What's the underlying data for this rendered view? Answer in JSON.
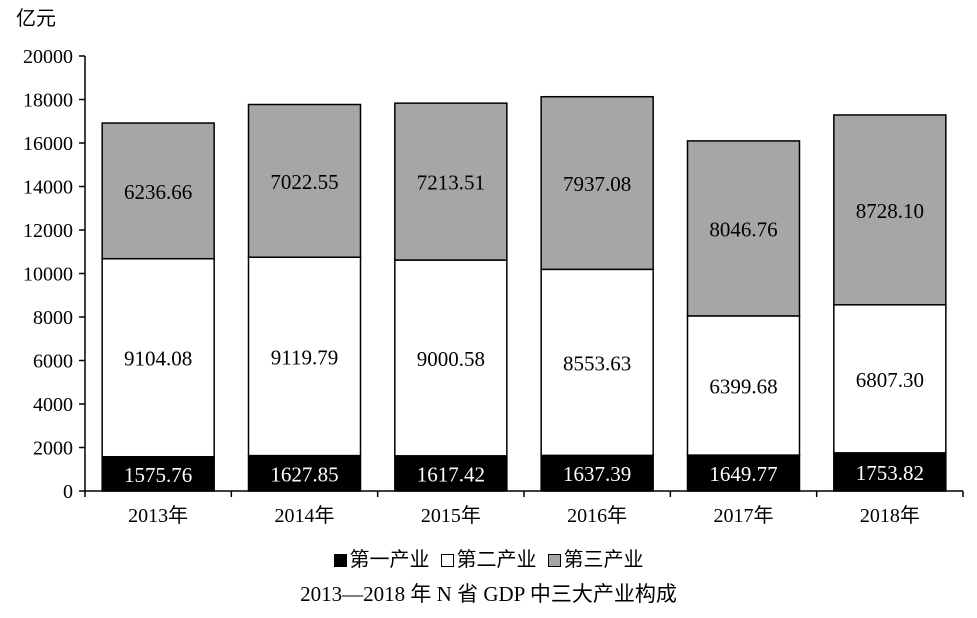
{
  "chart_data": {
    "type": "bar",
    "stacked": true,
    "title": "2013—2018 年 N 省 GDP 中三大产业构成",
    "ylabel": "亿元",
    "xlabel": "",
    "categories": [
      "2013年",
      "2014年",
      "2015年",
      "2016年",
      "2017年",
      "2018年"
    ],
    "ylim": [
      0,
      20000
    ],
    "yticks": [
      0,
      2000,
      4000,
      6000,
      8000,
      10000,
      12000,
      14000,
      16000,
      18000,
      20000
    ],
    "ytick_labels": [
      "0",
      "2000",
      "4000",
      "6000",
      "8000",
      "10000",
      "12000",
      "14000",
      "16000",
      "18000",
      "20000"
    ],
    "grid": false,
    "legend_position": "bottom",
    "series": [
      {
        "name": "第一产业",
        "color": "#000000",
        "label_color": "#ffffff",
        "values": [
          1575.76,
          1627.85,
          1617.42,
          1637.39,
          1649.77,
          1753.82
        ],
        "labels": [
          "1575.76",
          "1627.85",
          "1617.42",
          "1637.39",
          "1649.77",
          "1753.82"
        ]
      },
      {
        "name": "第二产业",
        "color": "#ffffff",
        "label_color": "#000000",
        "values": [
          9104.08,
          9119.79,
          9000.58,
          8553.63,
          6399.68,
          6807.3
        ],
        "labels": [
          "9104.08",
          "9119.79",
          "9000.58",
          "8553.63",
          "6399.68",
          "6807.30"
        ]
      },
      {
        "name": "第三产业",
        "color": "#a6a6a6",
        "label_color": "#000000",
        "values": [
          6236.66,
          7022.55,
          7213.51,
          7937.08,
          8046.76,
          8728.1
        ],
        "labels": [
          "6236.66",
          "7022.55",
          "7213.51",
          "7937.08",
          "8046.76",
          "8728.10"
        ]
      }
    ]
  }
}
